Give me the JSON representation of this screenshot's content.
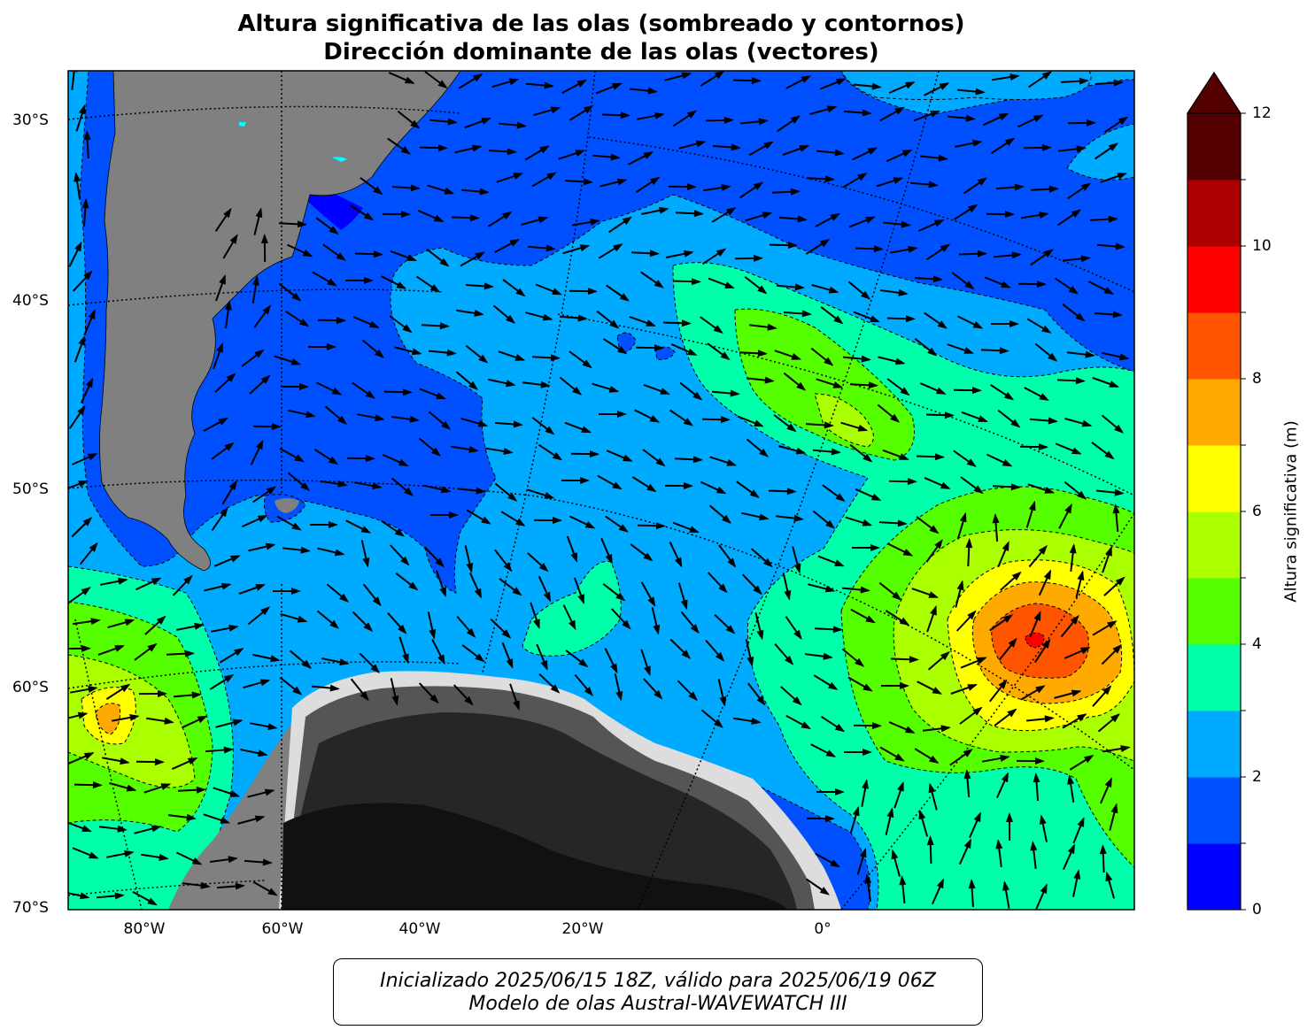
{
  "title": {
    "line1": "Altura significativa de las olas (sombreado y contornos)",
    "line2": "Dirección dominante de las olas (vectores)"
  },
  "axes": {
    "lat_ticks": [
      "30°S",
      "40°S",
      "50°S",
      "60°S",
      "70°S"
    ],
    "lon_ticks": [
      "80°W",
      "60°W",
      "40°W",
      "20°W",
      "0°"
    ]
  },
  "colorbar": {
    "label": "Altura significativa (m)",
    "ticks": [
      "0",
      "2",
      "4",
      "6",
      "8",
      "10",
      "12"
    ],
    "levels": [
      0,
      1,
      2,
      3,
      4,
      5,
      6,
      7,
      8,
      9,
      10,
      11,
      12
    ],
    "colors": [
      "#0000ff",
      "#0050ff",
      "#00aaff",
      "#00ffaa",
      "#55ff00",
      "#aaff00",
      "#ffff00",
      "#ffaa00",
      "#ff5500",
      "#ff0000",
      "#aa0000",
      "#550000"
    ],
    "extend": "max"
  },
  "map_colors": {
    "land": "#808080",
    "ice_dark": "#1a1a1a",
    "ice_mid": "#555555",
    "ice_light": "#bbbbbb",
    "lakes": "#00ffff",
    "arrows": "#000000"
  },
  "footer": {
    "line1": "Inicializado 2025/06/15 18Z, válido para 2025/06/19 06Z",
    "line2": "Modelo de olas Austral-WAVEWATCH III"
  }
}
